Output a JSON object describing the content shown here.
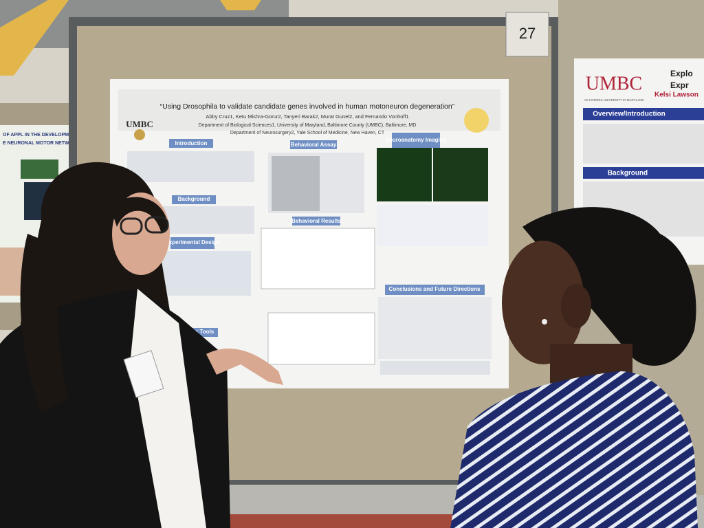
{
  "board_number": "27",
  "main_poster": {
    "logo": "UMBC",
    "title": "“Using Drosophila to validate candidate genes involved in human motoneuron degeneration”",
    "authors": "Abby Cruz1, Ketu Mishra-Gorur2, Tanyeri Barak2, Murat Gunel2, and Fernando Vonhoff1",
    "affiliations": [
      "Department of Biological Sciences1, University of Maryland, Baltimore County (UMBC), Baltimore, MD",
      "Department of Neurosurgery2, Yale School of Medicine, New Haven, CT"
    ],
    "sections": [
      "Introduction",
      "Behavioral Assay",
      "Neuroanatomy Imaging",
      "Background",
      "Behavioral Results",
      "Experimental Design",
      "Genetic Tools",
      "Conclusions and Future Directions"
    ]
  },
  "right_poster": {
    "logo": "UMBC",
    "tagline": "AN HONORS UNIVERSITY IN MARYLAND",
    "title_fragments": [
      "Explo",
      "Expr"
    ],
    "author_fragment": "Kelsi Lawson",
    "sections": [
      "Overview/Introduction",
      "Background"
    ]
  },
  "left_poster": {
    "title_fragments": [
      "OF APPL IN THE DEVELOPMENT AND DE",
      "E NEURONAL MOTOR NETWORK IN DROS"
    ]
  }
}
